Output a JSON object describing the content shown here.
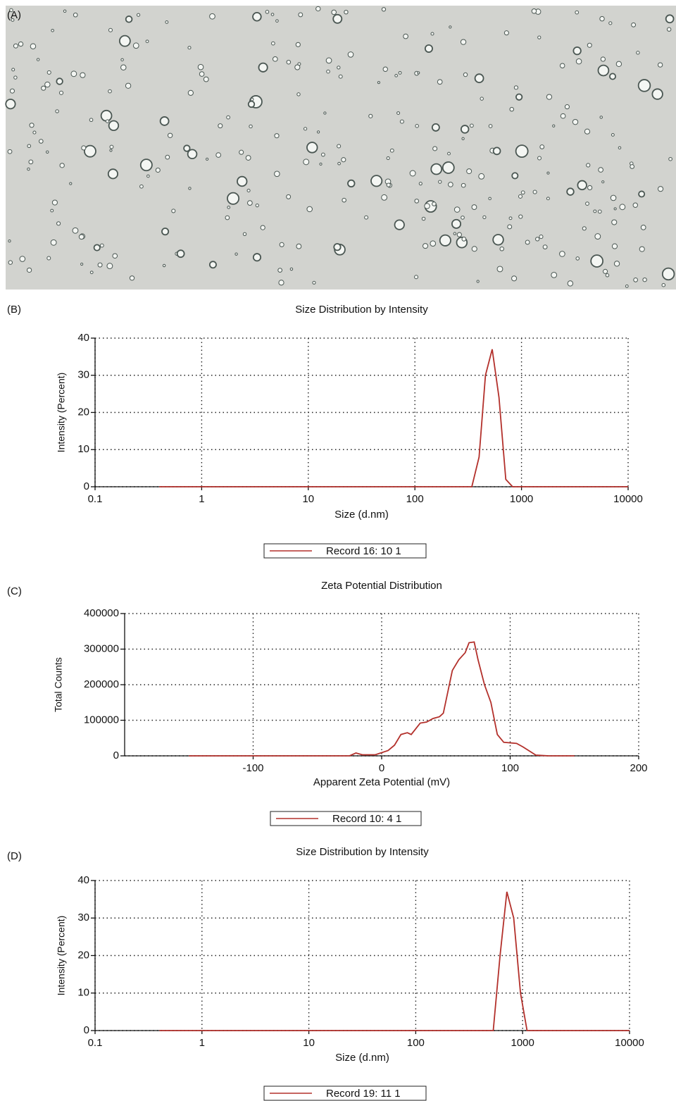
{
  "image_panel": {
    "label": "(A)"
  },
  "chart_data": [
    {
      "type": "line",
      "panel_label": "(B)",
      "title": "Size Distribution by Intensity",
      "x_label": "Size (d.nm)",
      "y_label": "Intensity (Percent)",
      "xscale": "log",
      "xlim": [
        0.1,
        10000
      ],
      "xticks": [
        0.1,
        1,
        10,
        100,
        1000,
        10000
      ],
      "ylim": [
        0,
        40
      ],
      "yticks": [
        0,
        10,
        20,
        30,
        40
      ],
      "grid": true,
      "x": [
        0.4,
        342,
        400,
        459,
        531,
        615,
        712,
        825,
        10000
      ],
      "series": [
        {
          "name": "Record 16: 10 1",
          "color": "#b3302b",
          "values": [
            0,
            0,
            8,
            30,
            37,
            24,
            2,
            0,
            0
          ]
        }
      ]
    },
    {
      "type": "line",
      "panel_label": "(C)",
      "title": "Zeta Potential Distribution",
      "x_label": "Apparent Zeta Potential (mV)",
      "y_label": "Total Counts",
      "xscale": "linear",
      "xlim": [
        -200,
        200
      ],
      "xticks": [
        -100,
        0,
        100,
        200
      ],
      "ylim": [
        0,
        400000
      ],
      "yticks": [
        0,
        100000,
        200000,
        300000,
        400000
      ],
      "grid": true,
      "x": [
        -150,
        -25,
        -20,
        -15,
        -5,
        5,
        10,
        15,
        20,
        23,
        30,
        35,
        40,
        45,
        48,
        55,
        60,
        65,
        68,
        72,
        75,
        80,
        85,
        90,
        95,
        105,
        110,
        120,
        130,
        150
      ],
      "series": [
        {
          "name": "Record 10: 4 1",
          "color": "#b3302b",
          "values": [
            0,
            0,
            8000,
            3000,
            3000,
            15000,
            30000,
            60000,
            65000,
            60000,
            92000,
            95000,
            105000,
            110000,
            120000,
            240000,
            270000,
            290000,
            318000,
            320000,
            270000,
            200000,
            150000,
            60000,
            38000,
            35000,
            25000,
            2000,
            0,
            0
          ]
        }
      ]
    },
    {
      "type": "line",
      "panel_label": "(D)",
      "title": "Size Distribution by Intensity",
      "x_label": "Size (d.nm)",
      "y_label": "Intensity (Percent)",
      "xscale": "log",
      "xlim": [
        0.1,
        10000
      ],
      "xticks": [
        0.1,
        1,
        10,
        100,
        1000,
        10000
      ],
      "ylim": [
        0,
        40
      ],
      "yticks": [
        0,
        10,
        20,
        30,
        40
      ],
      "grid": true,
      "x": [
        0.4,
        531,
        615,
        712,
        825,
        955,
        1100,
        10000
      ],
      "series": [
        {
          "name": "Record 19: 11 1",
          "color": "#b3302b",
          "values": [
            0,
            0,
            20,
            37,
            30,
            10,
            0,
            0
          ]
        }
      ]
    }
  ]
}
